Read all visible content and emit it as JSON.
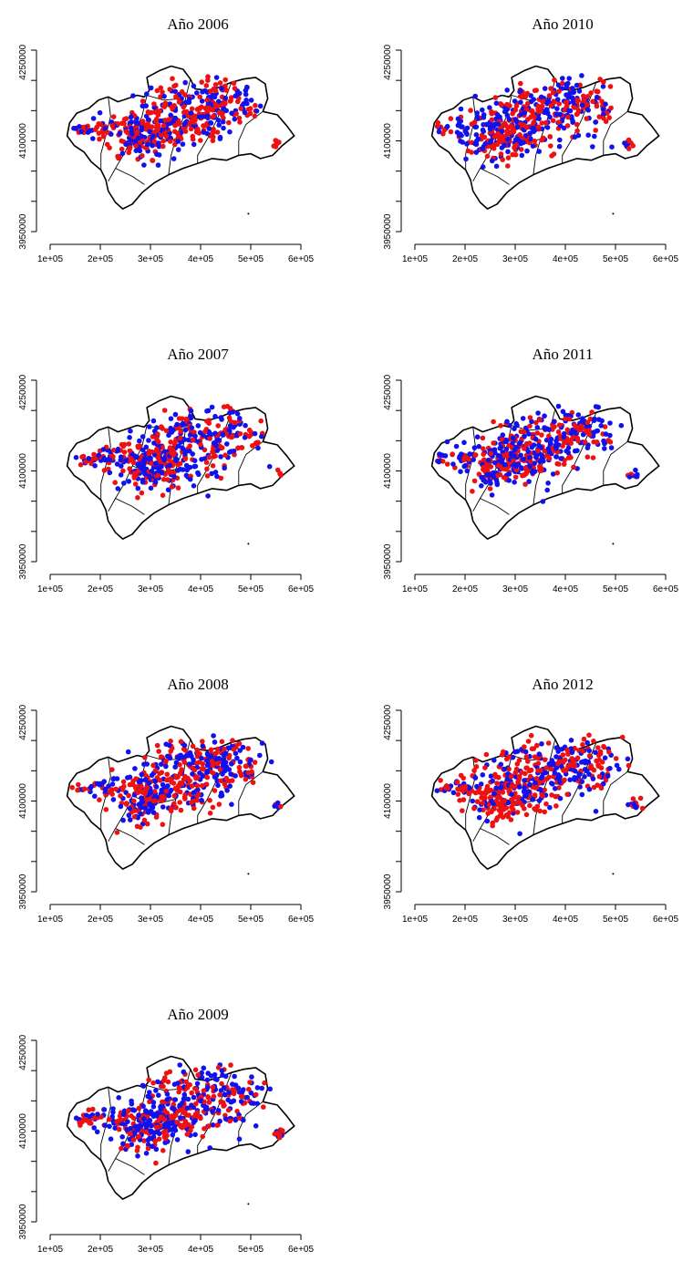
{
  "colors": {
    "series_a": "#ee1111",
    "series_b": "#1111ee",
    "outline": "#000000"
  },
  "chart_data": {
    "type": "scatter",
    "layout": "small-multiples",
    "xticks": [
      "1e+05",
      "2e+05",
      "3e+05",
      "4e+05",
      "5e+05",
      "6e+05"
    ],
    "yticks": [
      "3950000",
      "4100000",
      "4250000"
    ],
    "xlim": [
      100000,
      600000
    ],
    "ylim": [
      3950000,
      4300000
    ],
    "panels": [
      {
        "title": "Año 2006",
        "seed": 11,
        "red_share": 0.55,
        "shift": 0.0
      },
      {
        "title": "Año 2010",
        "seed": 22,
        "red_share": 0.5,
        "shift": -0.05
      },
      {
        "title": "Año 2007",
        "seed": 33,
        "red_share": 0.5,
        "shift": 0.02
      },
      {
        "title": "Año 2011",
        "seed": 44,
        "red_share": 0.45,
        "shift": -0.04
      },
      {
        "title": "Año 2008",
        "seed": 55,
        "red_share": 0.5,
        "shift": 0.0
      },
      {
        "title": "Año 2012",
        "seed": 66,
        "red_share": 0.55,
        "shift": -0.03
      },
      {
        "title": "Año 2009",
        "seed": 77,
        "red_share": 0.5,
        "shift": 0.01
      }
    ]
  }
}
